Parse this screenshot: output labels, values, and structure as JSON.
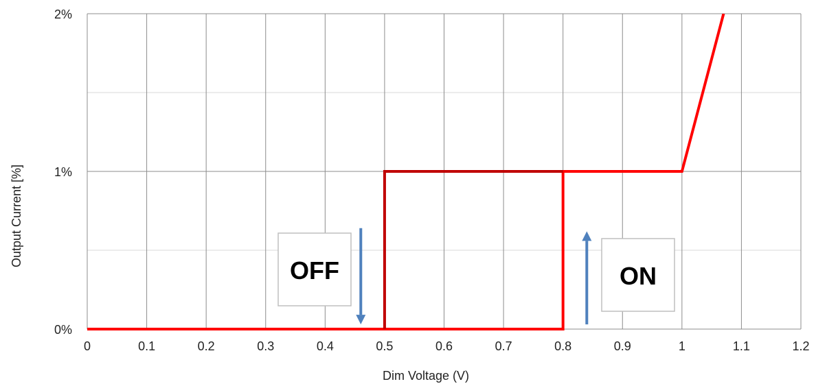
{
  "chart_data": {
    "type": "line",
    "xlabel": "Dim Voltage (V)",
    "ylabel": "Output Current [%]",
    "xlim": [
      0,
      1.2
    ],
    "ylim": [
      0,
      2
    ],
    "x_ticks": [
      0,
      0.1,
      0.2,
      0.3,
      0.4,
      0.5,
      0.6,
      0.7,
      0.8,
      0.9,
      1,
      1.1,
      1.2
    ],
    "x_tick_labels": [
      "0",
      "0.1",
      "0.2",
      "0.3",
      "0.4",
      "0.5",
      "0.6",
      "0.7",
      "0.8",
      "0.9",
      "1",
      "1.1",
      "1.2"
    ],
    "y_ticks": [
      0,
      1,
      2
    ],
    "y_tick_labels": [
      "0%",
      "1%",
      "2%"
    ],
    "y_minor_ticks": [
      0.5,
      1.5
    ],
    "grid": true,
    "series": [
      {
        "color": "#ff0000",
        "points": [
          [
            0,
            0
          ],
          [
            0.8,
            0
          ],
          [
            0.8,
            1
          ],
          [
            1,
            1
          ],
          [
            1.07,
            2
          ]
        ]
      },
      {
        "color": "#c00000",
        "points": [
          [
            0.5,
            0
          ],
          [
            0.5,
            1
          ],
          [
            0.8,
            1
          ]
        ]
      }
    ],
    "annotations": [
      {
        "text": "OFF",
        "arrow": "down",
        "arrow_x": 0.46,
        "arrow_from": 0.64,
        "arrow_to": 0.03
      },
      {
        "text": "ON",
        "arrow": "up",
        "arrow_x": 0.84,
        "arrow_from": 0.03,
        "arrow_to": 0.62
      }
    ],
    "arrow_color": "#4f81bd"
  }
}
